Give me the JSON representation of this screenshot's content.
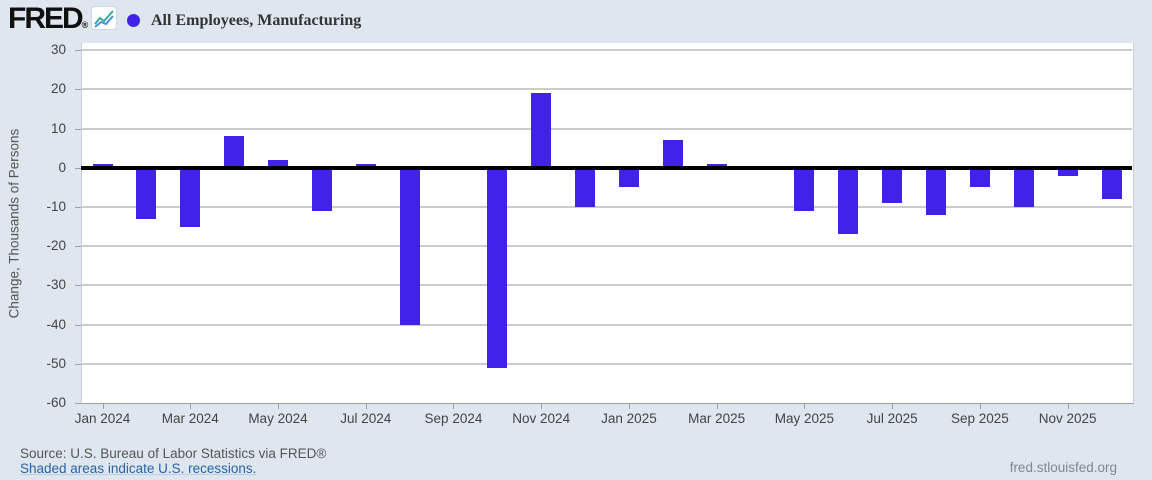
{
  "header": {
    "logo_text": "FRED",
    "logo_mark": "®",
    "legend": {
      "marker_color": "#4022e9",
      "label": "All Employees, Manufacturing"
    }
  },
  "chart_data": {
    "type": "bar",
    "title": "All Employees, Manufacturing",
    "ylabel": "Change, Thousands of Persons",
    "ylim": [
      -60,
      30
    ],
    "ytick_step": 10,
    "grid": true,
    "zero_line": true,
    "bar_color": "#4022e9",
    "categories": [
      "Jan 2024",
      "Feb 2024",
      "Mar 2024",
      "Apr 2024",
      "May 2024",
      "Jun 2024",
      "Jul 2024",
      "Aug 2024",
      "Sep 2024",
      "Oct 2024",
      "Nov 2024",
      "Dec 2024",
      "Jan 2025",
      "Feb 2025",
      "Mar 2025",
      "Apr 2025",
      "May 2025",
      "Jun 2025",
      "Jul 2025",
      "Aug 2025",
      "Sep 2025",
      "Oct 2025",
      "Nov 2025",
      "Dec 2025"
    ],
    "values": [
      1,
      -13,
      -15,
      8,
      2,
      -11,
      1,
      -40,
      0,
      -51,
      19,
      -10,
      -5,
      7,
      1,
      0,
      -11,
      -17,
      -9,
      -12,
      -5,
      -10,
      -2,
      -8
    ],
    "xtick_labels": [
      "Jan 2024",
      "Mar 2024",
      "May 2024",
      "Jul 2024",
      "Sep 2024",
      "Nov 2024",
      "Jan 2025",
      "Mar 2025",
      "May 2025",
      "Jul 2025",
      "Sep 2025",
      "Nov 2025"
    ]
  },
  "footer": {
    "source_text": "Source: U.S. Bureau of Labor Statistics via FRED®",
    "recession_note": "Shaded areas indicate U.S. recessions.",
    "site_url": "fred.stlouisfed.org"
  }
}
